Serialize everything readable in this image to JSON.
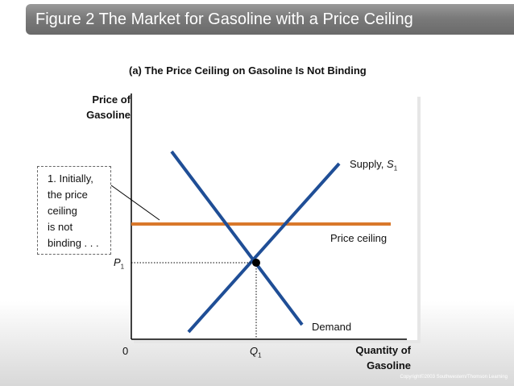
{
  "title": "Figure 2 The Market for Gasoline with a Price Ceiling",
  "subtitle": "(a) The Price Ceiling on Gasoline Is Not Binding",
  "y_axis_label": [
    "Price of",
    "Gasoline"
  ],
  "x_axis_label": [
    "Quantity of",
    "Gasoline"
  ],
  "origin_label": "0",
  "p_label": "P",
  "p_sub": "1",
  "q_label": "Q",
  "q_sub": "1",
  "supply_label": "Supply, ",
  "supply_symbol": "S",
  "supply_sub": "1",
  "demand_label": "Demand",
  "price_ceiling_label": "Price ceiling",
  "callout_lines": [
    "1. Initially,",
    "the price",
    "ceiling",
    "is not",
    "binding . . ."
  ],
  "copyright": "Copyright©2003  Southwestern/Thomson Learning",
  "colors": {
    "curves": "#1f4e96",
    "price_ceiling": "#d9782b",
    "title_bar": "#7a7a7a"
  }
}
